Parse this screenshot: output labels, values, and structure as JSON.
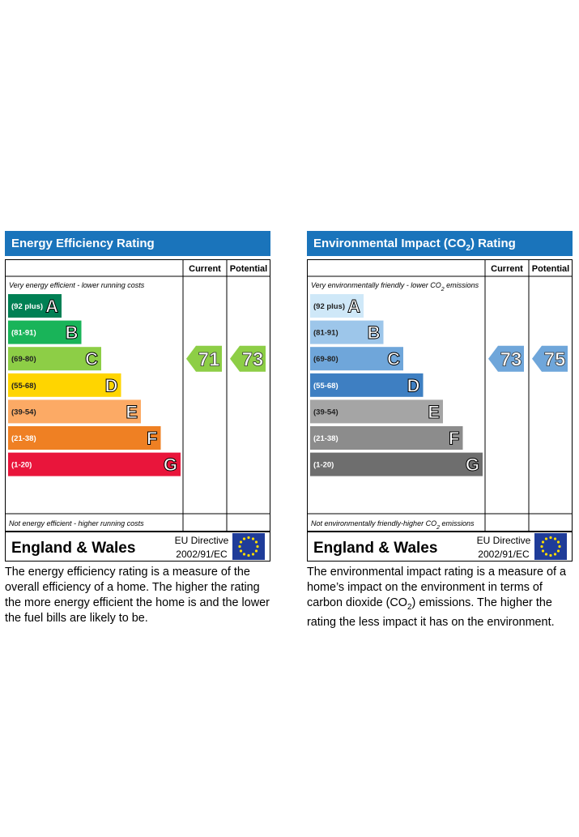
{
  "charts": [
    {
      "id": "ee",
      "title": "Energy Efficiency Rating",
      "col_current": "Current",
      "col_potential": "Potential",
      "top_note": "Very energy efficient - lower running costs",
      "bottom_note": "Not energy efficient - higher running costs",
      "region": "England & Wales",
      "directive_line1": "EU Directive",
      "directive_line2": "2002/91/EC",
      "description": "The energy efficiency rating is a measure of the overall efficiency of a home. The higher the rating the more energy efficient the home is and the lower the fuel bills are likely to be."
    },
    {
      "id": "ei",
      "title": "Environmental Impact (CO",
      "title_sub": "2",
      "title_end": ") Rating",
      "col_current": "Current",
      "col_potential": "Potential",
      "top_note": "Very environmentally friendly - lower CO",
      "top_note_sub": "2",
      "top_note_end": " emissions",
      "bottom_note": "Not environmentally friendly-higher CO",
      "bottom_note_sub": "2",
      "bottom_note_end": " emissions",
      "region": "England & Wales",
      "directive_line1": "EU Directive",
      "directive_line2": "2002/91/EC",
      "description": "The environmental impact rating is a measure of a home’s impact on the environment in terms of carbon dioxide (CO",
      "description_sub": "2",
      "description_end": ") emissions. The higher the rating the less impact it has on the environment."
    }
  ],
  "chart_data": [
    {
      "type": "bar",
      "title": "Energy Efficiency Rating",
      "categories": [
        "A",
        "B",
        "C",
        "D",
        "E",
        "F",
        "G"
      ],
      "ranges": [
        "(92 plus)",
        "(81-91)",
        "(69-80)",
        "(55-68)",
        "(39-54)",
        "(21-38)",
        "(1-20)"
      ],
      "colors": [
        "#008054",
        "#19b459",
        "#8dce46",
        "#ffd500",
        "#fcaa65",
        "#ef8023",
        "#e9153b"
      ],
      "current": 71,
      "potential": 73,
      "current_band_color": "#8dce46",
      "potential_band_color": "#8dce46"
    },
    {
      "type": "bar",
      "title": "Environmental Impact (CO2) Rating",
      "categories": [
        "A",
        "B",
        "C",
        "D",
        "E",
        "F",
        "G"
      ],
      "ranges": [
        "(92 plus)",
        "(81-91)",
        "(69-80)",
        "(55-68)",
        "(39-54)",
        "(21-38)",
        "(1-20)"
      ],
      "colors": [
        "#cfe8f8",
        "#9dc6ea",
        "#6fa6da",
        "#3e7fc2",
        "#a5a5a5",
        "#8c8c8c",
        "#6e6e6e"
      ],
      "current": 73,
      "potential": 75,
      "current_band_color": "#6fa6da",
      "potential_band_color": "#6fa6da"
    }
  ]
}
